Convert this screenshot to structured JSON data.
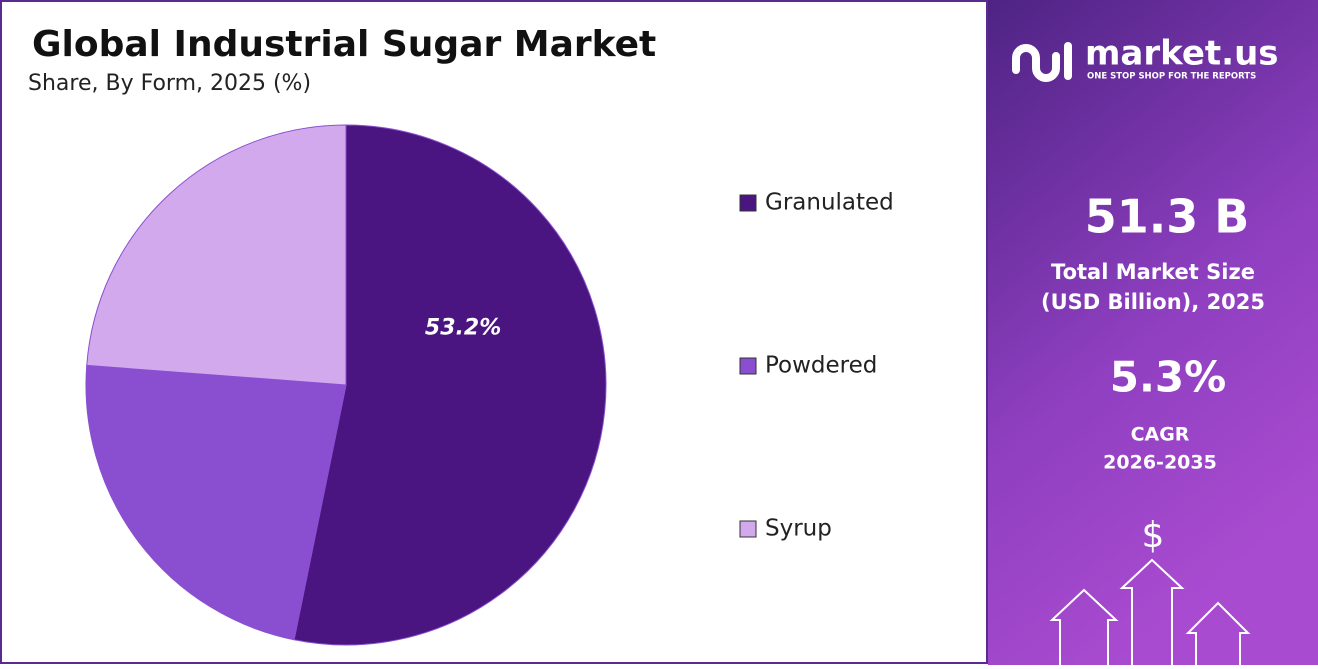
{
  "chart_data": {
    "type": "pie",
    "title": "Global Industrial Sugar Market",
    "subtitle": "Share, By Form, 2025 (%)",
    "categories": [
      "Granulated",
      "Powdered",
      "Syrup"
    ],
    "values": [
      53.2,
      23.0,
      23.8
    ],
    "value_labels": [
      "53.2%",
      null,
      null
    ],
    "colors": [
      "#4a1580",
      "#8a4fd0",
      "#d3a9ee"
    ],
    "legend": "right"
  },
  "panel": {
    "brand": "market.us",
    "tagline": "ONE STOP SHOP FOR THE REPORTS",
    "market_size": "51.3 B",
    "market_size_label": [
      "Total Market Size",
      "(USD Billion), 2025"
    ],
    "cagr": "5.3%",
    "cagr_label": [
      "CAGR",
      "2026-2035"
    ],
    "currency": "$"
  }
}
